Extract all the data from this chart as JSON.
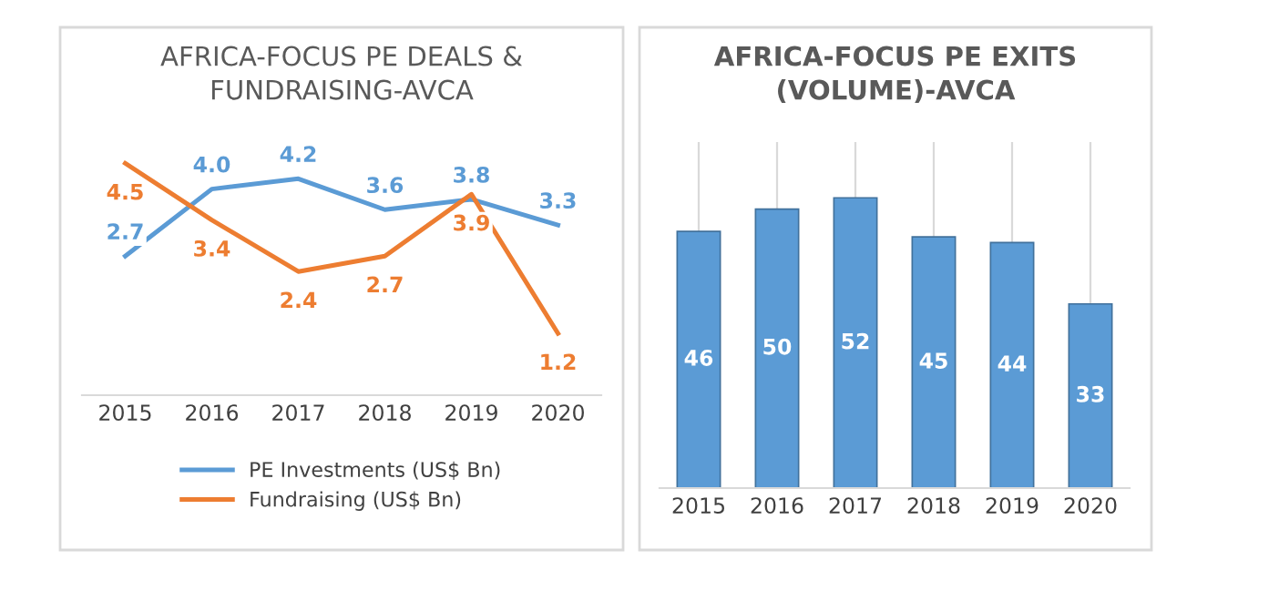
{
  "chart_data": [
    {
      "type": "line",
      "title": "AFRICA-FOCUS PE DEALS &\nFUNDRAISING-AVCA",
      "categories": [
        "2015",
        "2016",
        "2017",
        "2018",
        "2019",
        "2020"
      ],
      "series": [
        {
          "name": "PE Investments (US$ Bn)",
          "color": "#5b9bd5",
          "values": [
            2.7,
            4.0,
            4.2,
            3.6,
            3.8,
            3.3
          ],
          "value_labels": [
            "2.7",
            "4.0",
            "4.2",
            "3.6",
            "3.8",
            "3.3"
          ]
        },
        {
          "name": "Fundraising (US$ Bn)",
          "color": "#ed7d31",
          "values": [
            4.5,
            3.4,
            2.4,
            2.7,
            3.9,
            1.2
          ],
          "value_labels": [
            "4.5",
            "3.4",
            "2.4",
            "2.7",
            "3.9",
            "1.2"
          ]
        }
      ],
      "legend": "bottom",
      "grid": false,
      "tick_labels": "x",
      "line_style": "solid"
    },
    {
      "type": "bar",
      "title": "AFRICA-FOCUS PE EXITS\n(VOLUME)-AVCA",
      "categories": [
        "2015",
        "2016",
        "2017",
        "2018",
        "2019",
        "2020"
      ],
      "values": [
        46,
        50,
        52,
        45,
        44,
        33
      ],
      "color": "#5b9bd5",
      "ylim": [
        0,
        62
      ],
      "data_labels": true,
      "grid": "x",
      "tick_labels": "x"
    }
  ]
}
